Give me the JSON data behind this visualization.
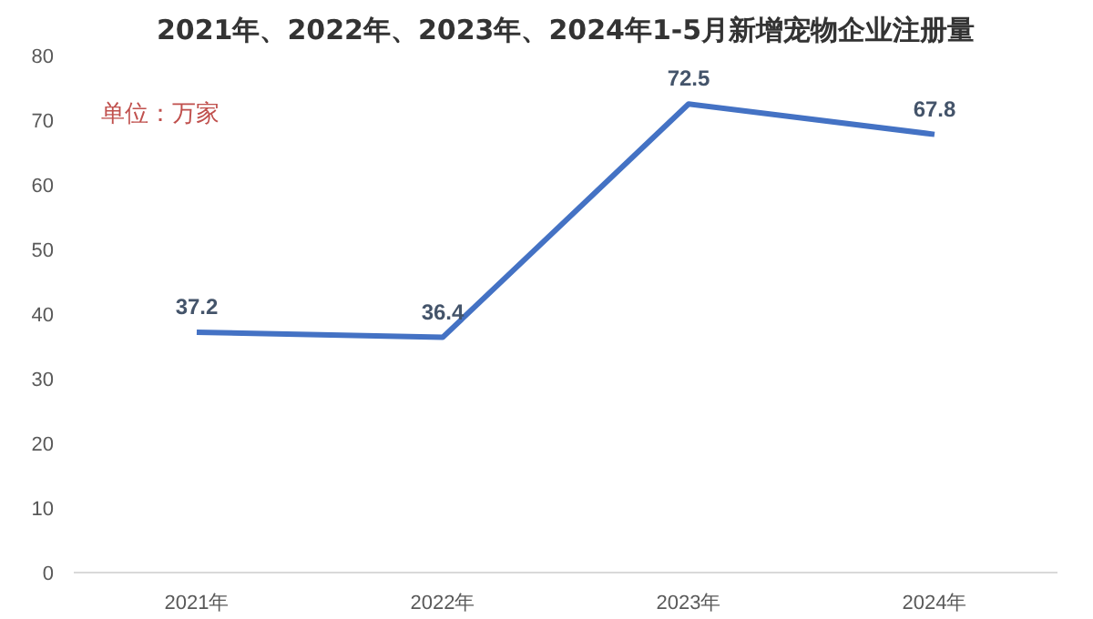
{
  "chart_data": {
    "type": "line",
    "title": "2021年、2022年、2023年、2024年1-5月新增宠物企业注册量",
    "categories": [
      "2021年",
      "2022年",
      "2023年",
      "2024年"
    ],
    "series": [
      {
        "color": "#4472c4",
        "values": [
          37.2,
          36.4,
          72.5,
          67.8
        ]
      }
    ],
    "ylim": [
      0,
      80
    ],
    "yticks": [
      0,
      10,
      20,
      30,
      40,
      50,
      60,
      70,
      80
    ],
    "data_labels": true,
    "grid": false,
    "annotations": [
      "单位：万家"
    ]
  }
}
